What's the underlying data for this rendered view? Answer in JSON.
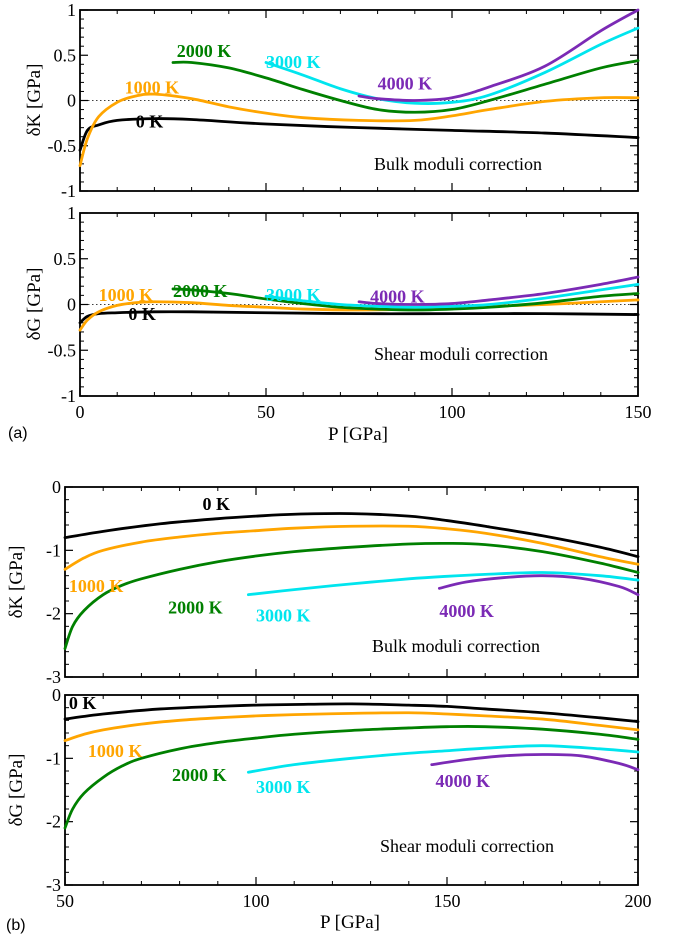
{
  "colors": {
    "0 K": "#000000",
    "1000 K": "#ffa500",
    "2000 K": "#008000",
    "3000 K": "#00e5ee",
    "4000 K": "#7b2ab5"
  },
  "chart_data": [
    {
      "id": "a-top",
      "type": "line",
      "title": "",
      "annotation": "Bulk moduli correction",
      "xlabel": "",
      "ylabel": "δK [GPa]",
      "xlim": [
        0,
        150
      ],
      "ylim": [
        -1,
        1
      ],
      "yticks": [
        -1,
        -0.5,
        0,
        0.5,
        1
      ],
      "ytick_labels": [
        "-1",
        "-0.5",
        "0",
        "0.5",
        "1"
      ],
      "xticks": [
        0,
        50,
        100,
        150
      ],
      "xtick_labels": [],
      "zero_line": true,
      "series": [
        {
          "name": "0 K",
          "x": [
            0,
            2,
            5,
            10,
            20,
            30,
            50,
            75,
            100,
            125,
            150
          ],
          "y": [
            -0.55,
            -0.33,
            -0.27,
            -0.22,
            -0.2,
            -0.21,
            -0.26,
            -0.3,
            -0.33,
            -0.36,
            -0.41
          ],
          "label_at": [
            15,
            -0.3
          ]
        },
        {
          "name": "1000 K",
          "x": [
            0,
            2,
            5,
            10,
            15,
            20,
            30,
            40,
            50,
            60,
            75,
            90,
            100,
            110,
            125,
            140,
            150
          ],
          "y": [
            -0.72,
            -0.42,
            -0.18,
            -0.02,
            0.05,
            0.07,
            0.02,
            -0.07,
            -0.14,
            -0.19,
            -0.22,
            -0.22,
            -0.17,
            -0.1,
            -0.01,
            0.03,
            0.03
          ],
          "label_at": [
            12,
            0.08
          ]
        },
        {
          "name": "2000 K",
          "x": [
            25,
            30,
            40,
            50,
            60,
            70,
            80,
            90,
            100,
            110,
            125,
            140,
            150
          ],
          "y": [
            0.42,
            0.42,
            0.36,
            0.25,
            0.12,
            0.0,
            -0.1,
            -0.13,
            -0.1,
            0.0,
            0.18,
            0.36,
            0.44
          ],
          "label_at": [
            26,
            0.48
          ]
        },
        {
          "name": "3000 K",
          "x": [
            50,
            60,
            70,
            80,
            90,
            100,
            110,
            125,
            140,
            150
          ],
          "y": [
            0.42,
            0.28,
            0.13,
            0.02,
            -0.03,
            -0.02,
            0.06,
            0.31,
            0.62,
            0.8
          ],
          "label_at": [
            50,
            0.36
          ]
        },
        {
          "name": "4000 K",
          "x": [
            75,
            80,
            90,
            100,
            110,
            125,
            140,
            150
          ],
          "y": [
            0.05,
            0.02,
            0.0,
            0.03,
            0.15,
            0.38,
            0.77,
            1.0
          ],
          "label_at": [
            80,
            0.12
          ]
        }
      ]
    },
    {
      "id": "a-bottom",
      "type": "line",
      "title": "",
      "annotation": "Shear moduli correction",
      "panel_label": "(a)",
      "xlabel": "P [GPa]",
      "ylabel": "δG [GPa]",
      "xlim": [
        0,
        150
      ],
      "ylim": [
        -1,
        1
      ],
      "yticks": [
        -1,
        -0.5,
        0,
        0.5,
        1
      ],
      "ytick_labels": [
        "-1",
        "-0.5",
        "0",
        "0.5",
        "1"
      ],
      "xticks": [
        0,
        50,
        100,
        150
      ],
      "xtick_labels": [
        "0",
        "50",
        "100",
        "150"
      ],
      "zero_line": true,
      "series": [
        {
          "name": "0 K",
          "x": [
            0,
            2,
            5,
            10,
            20,
            30,
            50,
            75,
            100,
            125,
            150
          ],
          "y": [
            -0.2,
            -0.13,
            -0.1,
            -0.09,
            -0.08,
            -0.08,
            -0.09,
            -0.1,
            -0.1,
            -0.1,
            -0.11
          ],
          "label_at": [
            13,
            -0.17
          ]
        },
        {
          "name": "1000 K",
          "x": [
            0,
            2,
            5,
            10,
            15,
            20,
            30,
            40,
            50,
            60,
            75,
            90,
            100,
            110,
            125,
            140,
            150
          ],
          "y": [
            -0.28,
            -0.17,
            -0.08,
            -0.01,
            0.02,
            0.03,
            0.02,
            -0.01,
            -0.03,
            -0.05,
            -0.06,
            -0.05,
            -0.04,
            -0.02,
            0.0,
            0.03,
            0.05
          ],
          "label_at": [
            5,
            0.04
          ]
        },
        {
          "name": "2000 K",
          "x": [
            25,
            30,
            40,
            50,
            60,
            70,
            80,
            90,
            100,
            110,
            125,
            140,
            150
          ],
          "y": [
            0.17,
            0.16,
            0.12,
            0.06,
            0.01,
            -0.03,
            -0.05,
            -0.06,
            -0.05,
            -0.03,
            0.02,
            0.09,
            0.12
          ],
          "label_at": [
            25,
            0.08
          ]
        },
        {
          "name": "3000 K",
          "x": [
            50,
            60,
            70,
            80,
            90,
            100,
            110,
            125,
            140,
            150
          ],
          "y": [
            0.09,
            0.04,
            0.0,
            -0.02,
            -0.03,
            -0.02,
            0.0,
            0.07,
            0.16,
            0.22
          ],
          "label_at": [
            50,
            0.04
          ]
        },
        {
          "name": "4000 K",
          "x": [
            75,
            80,
            90,
            100,
            110,
            125,
            140,
            150
          ],
          "y": [
            0.03,
            0.01,
            0.0,
            0.01,
            0.05,
            0.12,
            0.22,
            0.3
          ],
          "label_at": [
            78,
            0.02
          ]
        }
      ]
    },
    {
      "id": "b-top",
      "type": "line",
      "title": "",
      "annotation": "Bulk moduli correction",
      "xlabel": "",
      "ylabel": "δK [GPa]",
      "xlim": [
        50,
        200
      ],
      "ylim": [
        -3,
        0
      ],
      "yticks": [
        -3,
        -2,
        -1,
        0
      ],
      "ytick_labels": [
        "-3",
        "-2",
        "-1",
        "0"
      ],
      "xticks": [
        50,
        100,
        150,
        200
      ],
      "xtick_labels": [],
      "zero_line": false,
      "series": [
        {
          "name": "0 K",
          "x": [
            50,
            60,
            75,
            90,
            100,
            110,
            125,
            140,
            150,
            160,
            175,
            190,
            200
          ],
          "y": [
            -0.8,
            -0.7,
            -0.58,
            -0.5,
            -0.46,
            -0.43,
            -0.42,
            -0.46,
            -0.53,
            -0.62,
            -0.77,
            -0.95,
            -1.1
          ],
          "label_at": [
            86,
            -0.36
          ]
        },
        {
          "name": "1000 K",
          "x": [
            50,
            55,
            60,
            70,
            80,
            90,
            100,
            110,
            125,
            140,
            150,
            160,
            175,
            190,
            200
          ],
          "y": [
            -1.3,
            -1.12,
            -1.0,
            -0.87,
            -0.79,
            -0.73,
            -0.69,
            -0.65,
            -0.62,
            -0.62,
            -0.66,
            -0.73,
            -0.89,
            -1.1,
            -1.22
          ],
          "label_at": [
            51,
            -1.66
          ]
        },
        {
          "name": "2000 K",
          "x": [
            50,
            52,
            55,
            60,
            65,
            70,
            80,
            90,
            100,
            110,
            125,
            140,
            150,
            160,
            175,
            190,
            200
          ],
          "y": [
            -2.55,
            -2.2,
            -1.95,
            -1.7,
            -1.55,
            -1.45,
            -1.3,
            -1.18,
            -1.09,
            -1.02,
            -0.95,
            -0.9,
            -0.89,
            -0.91,
            -1.02,
            -1.2,
            -1.35
          ],
          "label_at": [
            77,
            -2.0
          ]
        },
        {
          "name": "3000 K",
          "x": [
            98,
            110,
            125,
            140,
            150,
            160,
            175,
            190,
            200
          ],
          "y": [
            -1.7,
            -1.62,
            -1.53,
            -1.45,
            -1.41,
            -1.38,
            -1.35,
            -1.4,
            -1.47
          ],
          "label_at": [
            100,
            -2.12
          ]
        },
        {
          "name": "4000 K",
          "x": [
            148,
            155,
            165,
            175,
            185,
            195,
            200
          ],
          "y": [
            -1.6,
            -1.5,
            -1.43,
            -1.4,
            -1.44,
            -1.57,
            -1.7
          ],
          "label_at": [
            148,
            -2.05
          ]
        }
      ]
    },
    {
      "id": "b-bottom",
      "type": "line",
      "title": "",
      "annotation": "Shear moduli correction",
      "panel_label": "(b)",
      "xlabel": "P [GPa]",
      "ylabel": "δG [GPa]",
      "xlim": [
        50,
        200
      ],
      "ylim": [
        -3,
        0
      ],
      "yticks": [
        -3,
        -2,
        -1,
        0
      ],
      "ytick_labels": [
        "-3",
        "-2",
        "-1",
        "0"
      ],
      "xticks": [
        50,
        100,
        150,
        200
      ],
      "xtick_labels": [
        "50",
        "100",
        "150",
        "200"
      ],
      "zero_line": false,
      "series": [
        {
          "name": "0 K",
          "x": [
            50,
            60,
            75,
            90,
            100,
            110,
            125,
            140,
            150,
            160,
            175,
            190,
            200
          ],
          "y": [
            -0.38,
            -0.3,
            -0.22,
            -0.18,
            -0.16,
            -0.15,
            -0.14,
            -0.16,
            -0.18,
            -0.22,
            -0.28,
            -0.36,
            -0.42
          ],
          "label_at": [
            51,
            -0.22
          ]
        },
        {
          "name": "1000 K",
          "x": [
            50,
            55,
            60,
            70,
            80,
            90,
            100,
            110,
            125,
            140,
            150,
            160,
            175,
            190,
            200
          ],
          "y": [
            -0.72,
            -0.62,
            -0.55,
            -0.46,
            -0.4,
            -0.36,
            -0.33,
            -0.31,
            -0.29,
            -0.28,
            -0.3,
            -0.33,
            -0.38,
            -0.48,
            -0.55
          ],
          "label_at": [
            56,
            -0.98
          ]
        },
        {
          "name": "2000 K",
          "x": [
            50,
            52,
            55,
            60,
            65,
            70,
            80,
            90,
            100,
            110,
            125,
            140,
            150,
            160,
            175,
            190,
            200
          ],
          "y": [
            -2.1,
            -1.8,
            -1.55,
            -1.3,
            -1.12,
            -1.0,
            -0.85,
            -0.75,
            -0.68,
            -0.62,
            -0.56,
            -0.52,
            -0.5,
            -0.5,
            -0.54,
            -0.62,
            -0.7
          ],
          "label_at": [
            78,
            -1.36
          ]
        },
        {
          "name": "3000 K",
          "x": [
            98,
            110,
            125,
            140,
            150,
            160,
            175,
            190,
            200
          ],
          "y": [
            -1.22,
            -1.1,
            -1.0,
            -0.92,
            -0.88,
            -0.84,
            -0.8,
            -0.85,
            -0.9
          ],
          "label_at": [
            100,
            -1.55
          ]
        },
        {
          "name": "4000 K",
          "x": [
            146,
            155,
            165,
            175,
            185,
            195,
            200
          ],
          "y": [
            -1.1,
            -1.02,
            -0.96,
            -0.94,
            -0.96,
            -1.08,
            -1.18
          ],
          "label_at": [
            147,
            -1.45
          ]
        }
      ]
    }
  ]
}
